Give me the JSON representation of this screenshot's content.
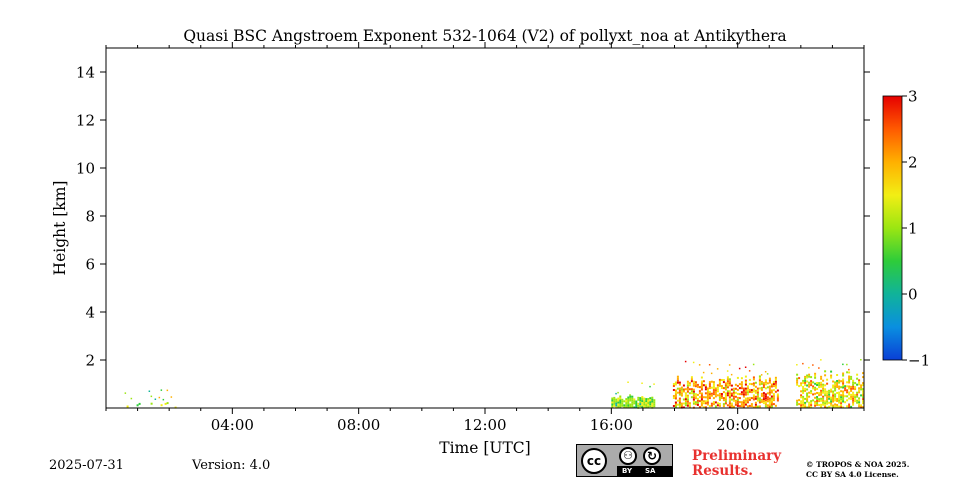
{
  "chart_data": {
    "type": "heatmap",
    "title": "Quasi BSC Angstroem Exponent 532-1064 (V2) of pollyxt_noa at Antikythera",
    "xlabel": "Time [UTC]",
    "ylabel": "Height [km]",
    "xlim_hours": [
      0,
      24
    ],
    "ylim_km": [
      0,
      15
    ],
    "x_ticks": [
      {
        "hour": 4,
        "label": "04:00"
      },
      {
        "hour": 8,
        "label": "08:00"
      },
      {
        "hour": 12,
        "label": "12:00"
      },
      {
        "hour": 16,
        "label": "16:00"
      },
      {
        "hour": 20,
        "label": "20:00"
      }
    ],
    "y_ticks": [
      {
        "value": 2,
        "label": "2"
      },
      {
        "value": 4,
        "label": "4"
      },
      {
        "value": 6,
        "label": "6"
      },
      {
        "value": 8,
        "label": "8"
      },
      {
        "value": 10,
        "label": "10"
      },
      {
        "value": 12,
        "label": "12"
      },
      {
        "value": 14,
        "label": "14"
      }
    ],
    "colorbar": {
      "range": [
        -1,
        3
      ],
      "ticks": [
        {
          "value": 3,
          "label": "3"
        },
        {
          "value": 2,
          "label": "2"
        },
        {
          "value": 1,
          "label": "1"
        },
        {
          "value": 0,
          "label": "0"
        },
        {
          "value": -1,
          "label": "−1"
        }
      ],
      "colors": [
        "#0a3fd6",
        "#0a8fe0",
        "#10b39a",
        "#2ecc3a",
        "#9be612",
        "#f2ee14",
        "#ffb000",
        "#ff5a00",
        "#e60000"
      ]
    },
    "data_regions": [
      {
        "t_start": 0.4,
        "t_end": 2.2,
        "h_top": 0.25,
        "h_bottom": 0.05,
        "mean": 1.0,
        "spread": 0.5,
        "density": 0.2
      },
      {
        "t_start": 16.0,
        "t_end": 17.35,
        "h_top": 0.55,
        "h_bottom": 0.05,
        "mean": 0.9,
        "spread": 0.45,
        "density": 0.95
      },
      {
        "t_start": 17.95,
        "t_end": 21.3,
        "h_top": 1.4,
        "h_bottom": 0.05,
        "mean": 1.9,
        "spread": 0.7,
        "density": 0.65
      },
      {
        "t_start": 21.85,
        "t_end": 24.0,
        "h_top": 1.6,
        "h_bottom": 0.05,
        "mean": 1.5,
        "spread": 0.7,
        "density": 0.6
      }
    ]
  },
  "footer": {
    "date": "2025-07-31",
    "version": "Version: 4.0",
    "preliminary_line1": "Preliminary",
    "preliminary_line2": "Results.",
    "copyright_line1": "© TROPOS & NOA 2025.",
    "copyright_line2": "CC BY SA 4.0 License.",
    "license_badge": {
      "cc": "cc",
      "by": "BY",
      "sa": "SA"
    }
  }
}
